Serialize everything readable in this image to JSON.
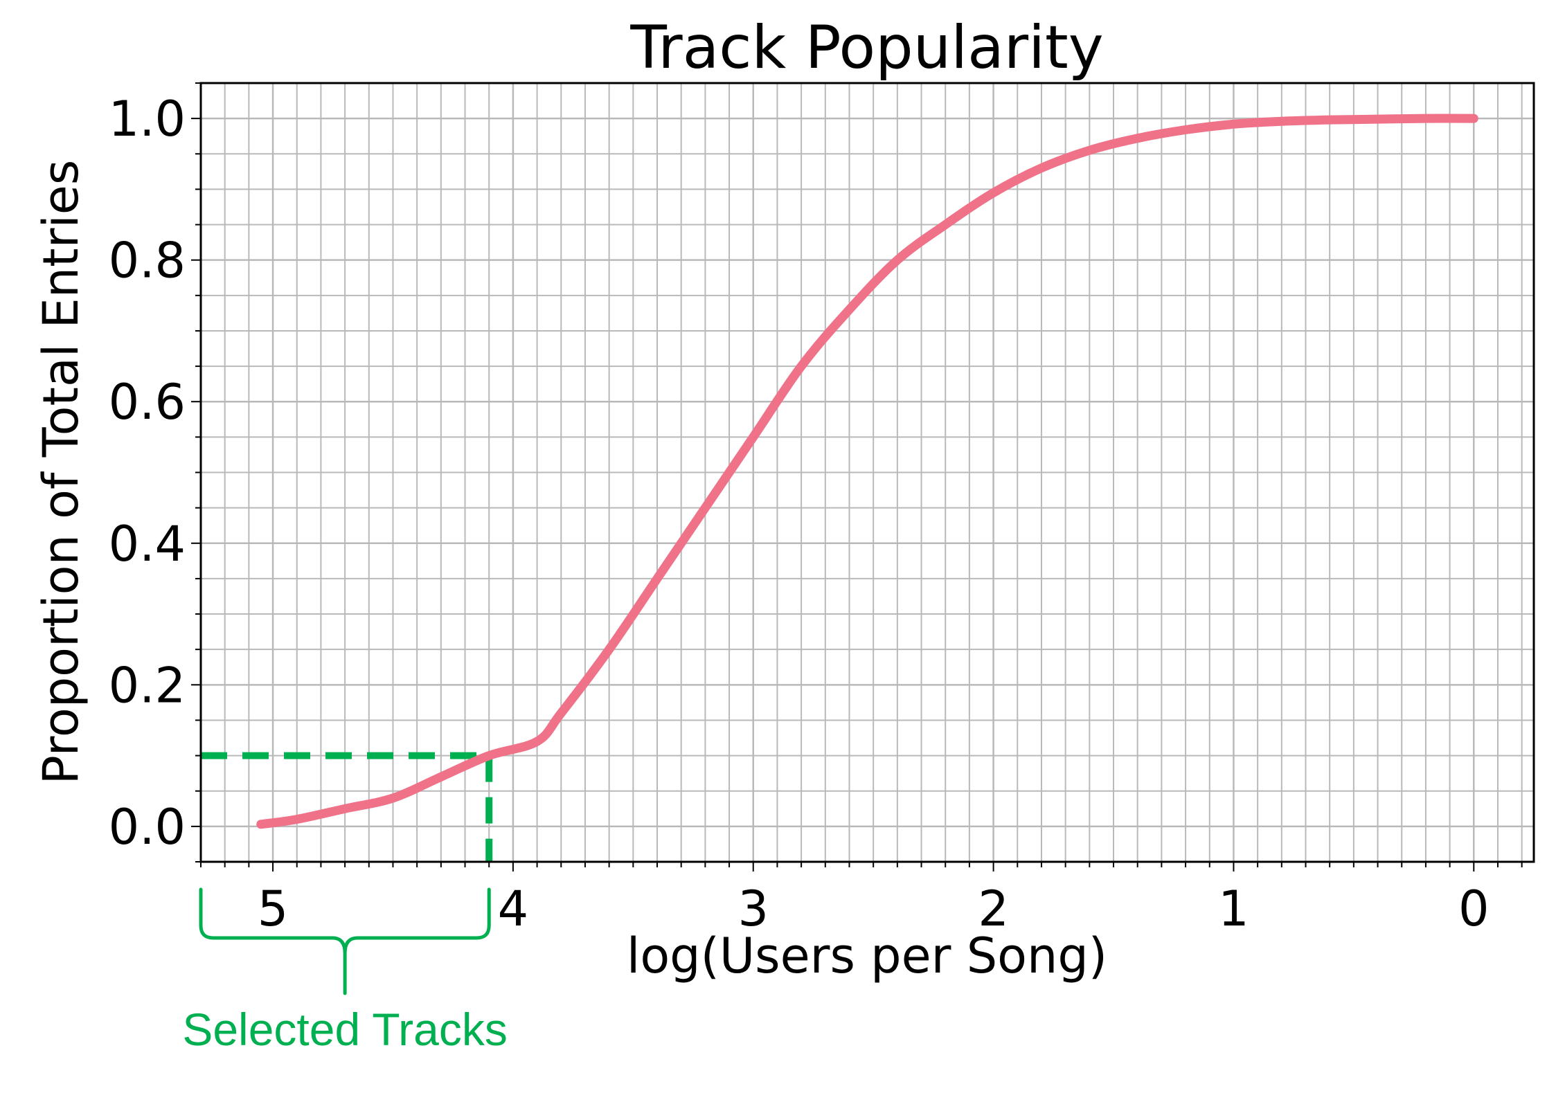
{
  "chart_data": {
    "type": "line",
    "title": "Track Popularity",
    "xlabel": "log(Users per Song)",
    "ylabel": "Proportion of Total Entries",
    "xlim": [
      5.3,
      -0.25
    ],
    "x_inverted": true,
    "ylim": [
      -0.05,
      1.05
    ],
    "grid": true,
    "minor_grid": true,
    "x_ticks": [
      5,
      4,
      3,
      2,
      1,
      0
    ],
    "x_tick_labels": [
      "5",
      "4",
      "3",
      "2",
      "1",
      "0"
    ],
    "y_ticks": [
      0.0,
      0.2,
      0.4,
      0.6,
      0.8,
      1.0
    ],
    "y_tick_labels": [
      "0.0",
      "0.2",
      "0.4",
      "0.6",
      "0.8",
      "1.0"
    ],
    "series": [
      {
        "color": "#f07289",
        "x": [
          5.05,
          4.9,
          4.7,
          4.5,
          4.3,
          4.1,
          3.9,
          3.8,
          3.6,
          3.4,
          3.2,
          3.0,
          2.8,
          2.6,
          2.4,
          2.2,
          2.0,
          1.8,
          1.6,
          1.4,
          1.2,
          1.0,
          0.8,
          0.6,
          0.4,
          0.2,
          0.0
        ],
        "y": [
          0.003,
          0.01,
          0.025,
          0.04,
          0.07,
          0.1,
          0.12,
          0.16,
          0.25,
          0.35,
          0.45,
          0.55,
          0.65,
          0.73,
          0.8,
          0.85,
          0.895,
          0.93,
          0.955,
          0.972,
          0.984,
          0.992,
          0.996,
          0.998,
          0.999,
          1.0,
          1.0
        ]
      }
    ],
    "annotations": {
      "selection_threshold": {
        "x": 4.1,
        "y": 0.1,
        "color": "#00b050"
      },
      "bracket_range": [
        5.3,
        4.1
      ],
      "bracket_label": "Selected Tracks"
    }
  }
}
